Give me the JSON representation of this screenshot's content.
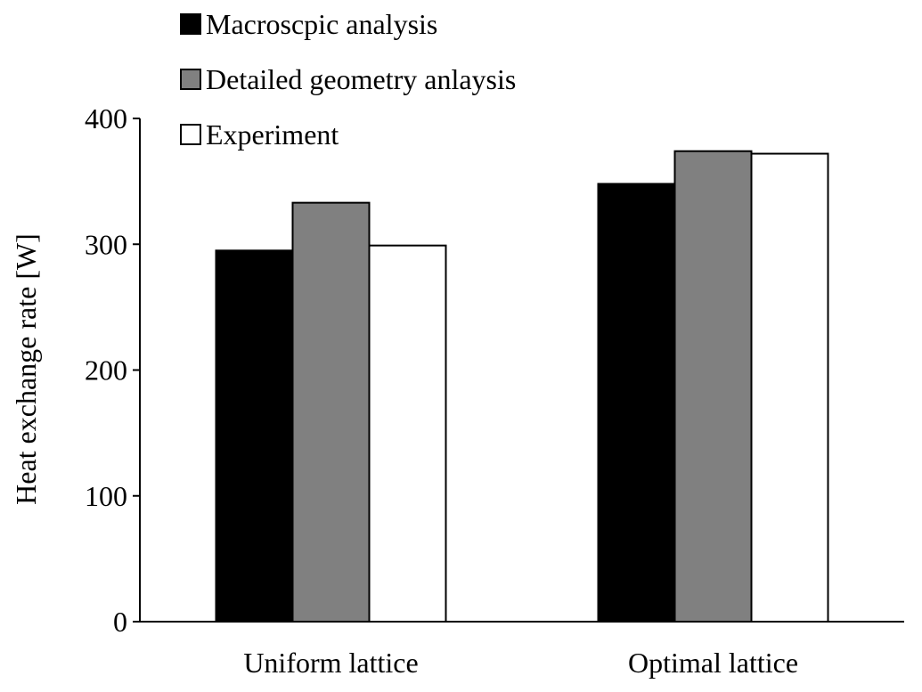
{
  "chart_data": {
    "type": "bar",
    "title": "",
    "xlabel": "",
    "ylabel": "Heat exchange rate [W]",
    "ylim": [
      0,
      400
    ],
    "yticks": [
      0,
      100,
      200,
      300,
      400
    ],
    "categories": [
      "Uniform lattice",
      "Optimal lattice"
    ],
    "series": [
      {
        "name": "Macroscpic analysis",
        "values": [
          295,
          348
        ],
        "color": "#000000"
      },
      {
        "name": "Detailed geometry anlaysis",
        "values": [
          333,
          374
        ],
        "color": "#808080"
      },
      {
        "name": "Experiment",
        "values": [
          299,
          372
        ],
        "color": "#ffffff"
      }
    ],
    "grid": false,
    "legend_position": "top-left"
  }
}
